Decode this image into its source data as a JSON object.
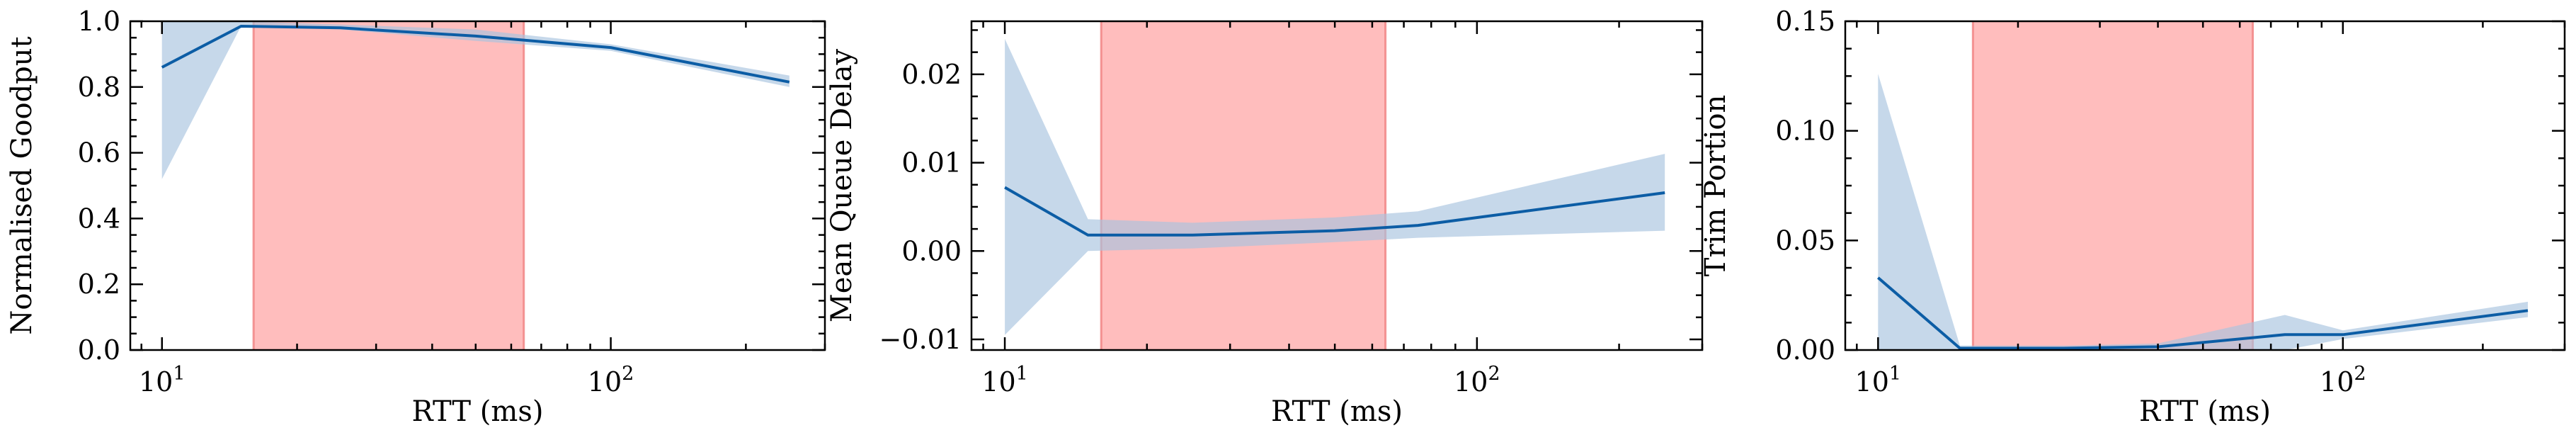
{
  "chart_data": [
    {
      "type": "line",
      "title": "",
      "xlabel": "RTT (ms)",
      "ylabel": "Normalised Goodput",
      "xscale": "log",
      "xlim": [
        8.5,
        300
      ],
      "ylim": [
        0,
        1.0
      ],
      "yticks": [
        0.0,
        0.2,
        0.4,
        0.6,
        0.8,
        1.0
      ],
      "ytick_labels": [
        "0.0",
        "0.2",
        "0.4",
        "0.6",
        "0.8",
        "1.0"
      ],
      "xticks": [
        10,
        100
      ],
      "xtick_labels": [
        {
          "base": "10",
          "exp": "1"
        },
        {
          "base": "10",
          "exp": "2"
        }
      ],
      "shaded_region": {
        "x0": 16,
        "x1": 64,
        "color": "#ff9999"
      },
      "series": [
        {
          "color": "#0c5da5",
          "band_color": "#a7c3df",
          "x": [
            10,
            15,
            25,
            50,
            100,
            250
          ],
          "y": [
            0.86,
            0.985,
            0.98,
            0.955,
            0.92,
            0.815
          ],
          "lower": [
            0.52,
            0.985,
            0.975,
            0.94,
            0.91,
            0.8
          ],
          "upper": [
            1.0,
            1.0,
            0.99,
            0.975,
            0.93,
            0.835
          ]
        }
      ]
    },
    {
      "type": "line",
      "title": "",
      "xlabel": "RTT (ms)",
      "ylabel": "Mean Queue Delay",
      "xscale": "log",
      "xlim": [
        8.5,
        300
      ],
      "ylim": [
        -0.0112,
        0.026
      ],
      "yticks": [
        -0.01,
        0.0,
        0.01,
        0.02
      ],
      "ytick_labels": [
        "−0.01",
        "0.00",
        "0.01",
        "0.02"
      ],
      "xticks": [
        10,
        100
      ],
      "xtick_labels": [
        {
          "base": "10",
          "exp": "1"
        },
        {
          "base": "10",
          "exp": "2"
        }
      ],
      "shaded_region": {
        "x0": 16,
        "x1": 64,
        "color": "#ff9999"
      },
      "series": [
        {
          "color": "#0c5da5",
          "band_color": "#a7c3df",
          "x": [
            10,
            15,
            25,
            50,
            75,
            250
          ],
          "y": [
            0.0072,
            0.0018,
            0.0018,
            0.0023,
            0.0029,
            0.0066
          ],
          "lower": [
            -0.0095,
            0.0,
            0.0003,
            0.001,
            0.0015,
            0.0023
          ],
          "upper": [
            0.024,
            0.0036,
            0.0032,
            0.0038,
            0.0045,
            0.011
          ]
        }
      ]
    },
    {
      "type": "line",
      "title": "",
      "xlabel": "RTT (ms)",
      "ylabel": "Trim Portion",
      "xscale": "log",
      "xlim": [
        8.5,
        300
      ],
      "ylim": [
        0,
        0.15
      ],
      "yticks": [
        0.0,
        0.05,
        0.1,
        0.15
      ],
      "ytick_labels": [
        "0.00",
        "0.05",
        "0.10",
        "0.15"
      ],
      "xticks": [
        10,
        100
      ],
      "xtick_labels": [
        {
          "base": "10",
          "exp": "1"
        },
        {
          "base": "10",
          "exp": "2"
        }
      ],
      "shaded_region": {
        "x0": 16,
        "x1": 64,
        "color": "#ff9999"
      },
      "series": [
        {
          "color": "#0c5da5",
          "band_color": "#a7c3df",
          "x": [
            10,
            15,
            25,
            40,
            75,
            100,
            250
          ],
          "y": [
            0.033,
            0.0008,
            0.0008,
            0.0015,
            0.007,
            0.007,
            0.018
          ],
          "lower": [
            0.0,
            0.0,
            0.0,
            0.0,
            0.0,
            0.005,
            0.015
          ],
          "upper": [
            0.126,
            0.002,
            0.002,
            0.003,
            0.016,
            0.009,
            0.022
          ]
        }
      ]
    }
  ]
}
